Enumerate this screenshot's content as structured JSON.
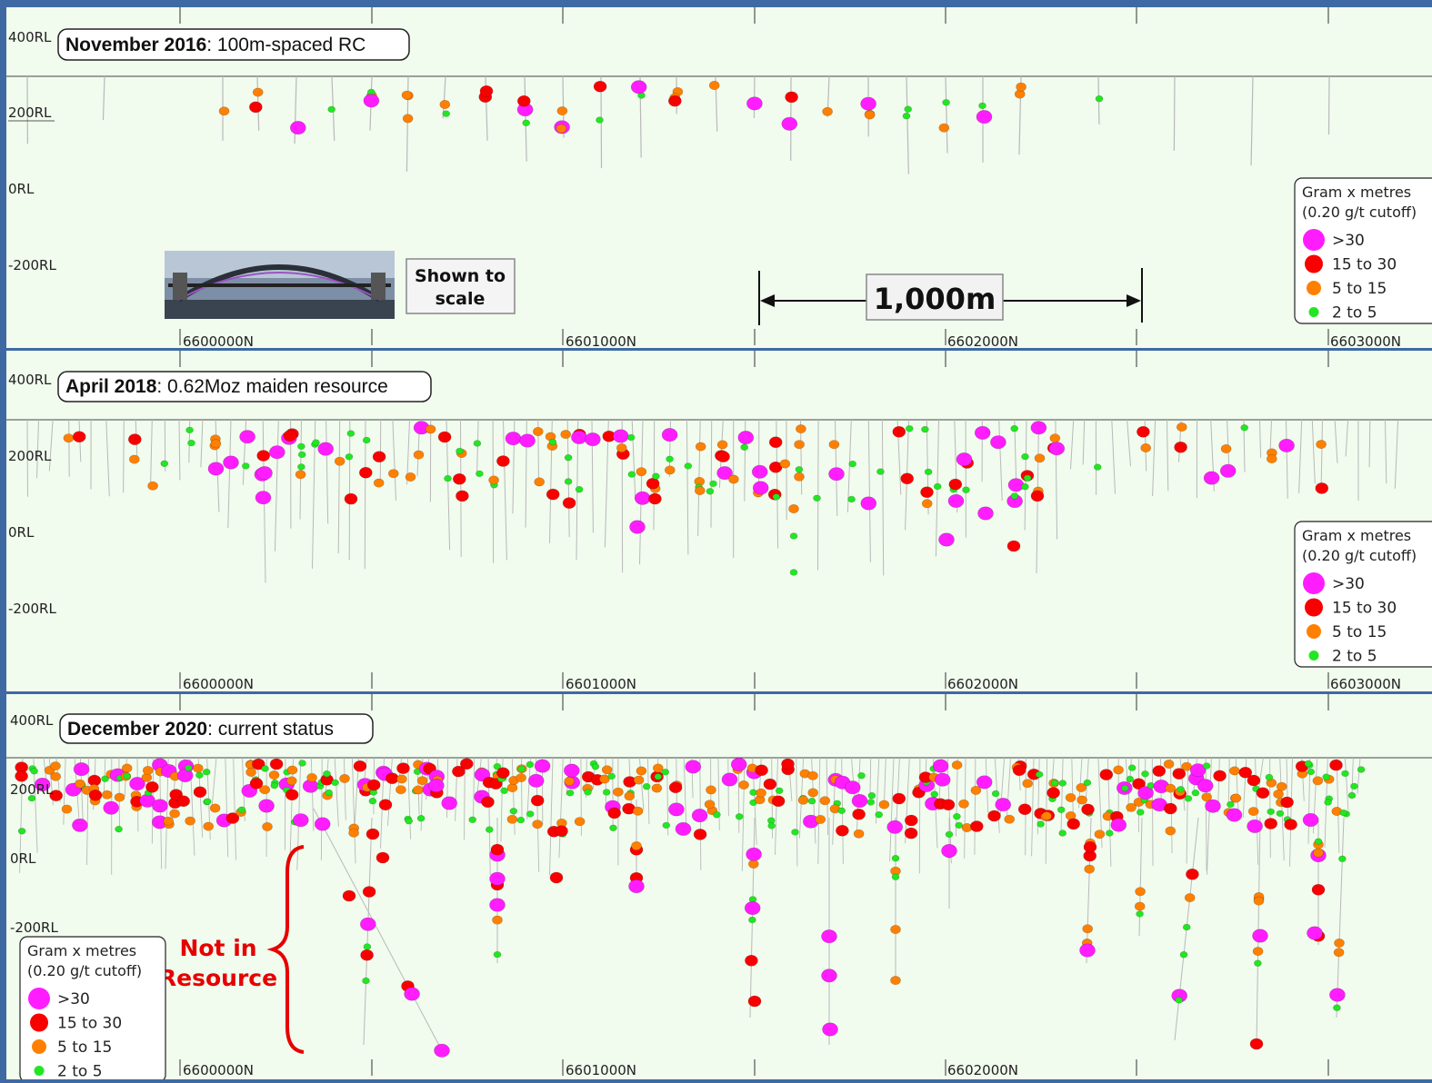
{
  "colors": {
    "background": "#f1fbee",
    "frame": "#3f69a3",
    "gt30": "#ff1dff",
    "g15_30": "#f80000",
    "g5_15": "#ff8000",
    "g2_5": "#22e622",
    "drillhole": "#b9b9b9",
    "annotation_red": "#e60000"
  },
  "panels": [
    {
      "title_bold": "November 2016",
      "title_rest": ": 100m-spaced RC",
      "rl_labels": [
        "400RL",
        "200RL",
        "0RL",
        "-200RL"
      ],
      "northings": [
        "6600000N",
        "6601000N",
        "6602000N",
        "6603000N"
      ],
      "legend": {
        "heading": "Gram x metres",
        "subheading": "(0.20 g/t cutoff)",
        "items": [
          {
            "label": ">30",
            "color": "#ff1dff"
          },
          {
            "label": "15 to 30",
            "color": "#f80000"
          },
          {
            "label": "5 to 15",
            "color": "#ff8000"
          },
          {
            "label": "2 to 5",
            "color": "#22e622"
          }
        ]
      }
    },
    {
      "title_bold": "April 2018",
      "title_rest": ": 0.62Moz maiden resource",
      "rl_labels": [
        "400RL",
        "200RL",
        "0RL",
        "-200RL"
      ],
      "northings": [
        "6600000N",
        "6601000N",
        "6602000N",
        "6603000N"
      ],
      "legend": {
        "heading": "Gram x metres",
        "subheading": "(0.20 g/t cutoff)",
        "items": [
          {
            "label": ">30",
            "color": "#ff1dff"
          },
          {
            "label": "15 to 30",
            "color": "#f80000"
          },
          {
            "label": "5 to 15",
            "color": "#ff8000"
          },
          {
            "label": "2 to 5",
            "color": "#22e622"
          }
        ]
      }
    },
    {
      "title_bold": "December 2020",
      "title_rest": ": current status",
      "rl_labels": [
        "400RL",
        "200RL",
        "0RL",
        "-200RL"
      ],
      "northings": [
        "6600000N",
        "6601000N",
        "6602000N"
      ],
      "legend": {
        "heading": "Gram x metres",
        "subheading": "(0.20 g/t cutoff)",
        "items": [
          {
            "label": ">30",
            "color": "#ff1dff"
          },
          {
            "label": "15 to 30",
            "color": "#f80000"
          },
          {
            "label": "5 to 15",
            "color": "#ff8000"
          },
          {
            "label": "2 to 5",
            "color": "#22e622"
          }
        ]
      }
    }
  ],
  "scale_note": {
    "line1": "Shown to",
    "line2": "scale"
  },
  "scale_bar": {
    "label": "1,000m"
  },
  "not_in_resource": {
    "line1": "Not in",
    "line2": "Resource"
  }
}
